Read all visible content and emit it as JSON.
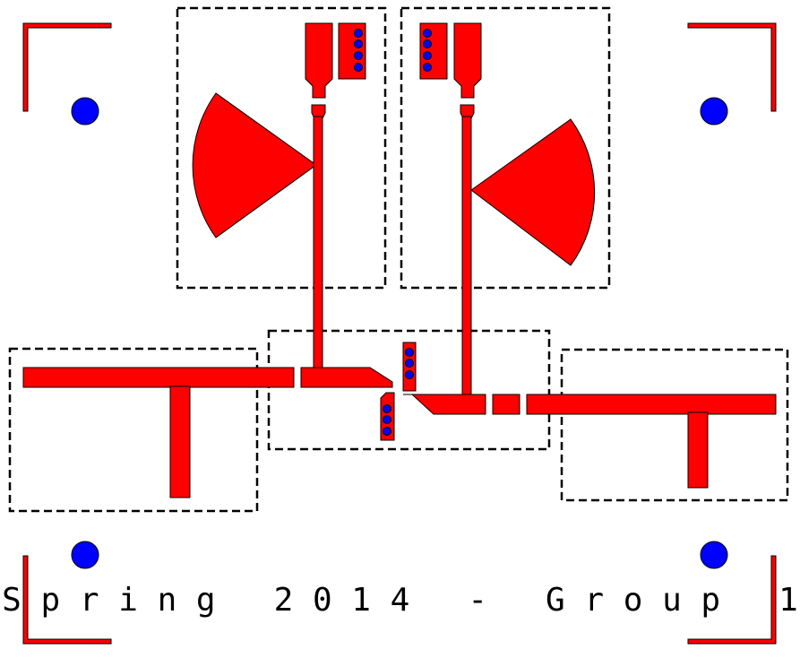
{
  "caption": "S p r i n g   2 0 1 4   -   G r o u p   1",
  "colors": {
    "metal": "#ff0000",
    "via": "#0000ff",
    "outline": "#000000",
    "background": "#ffffff"
  }
}
